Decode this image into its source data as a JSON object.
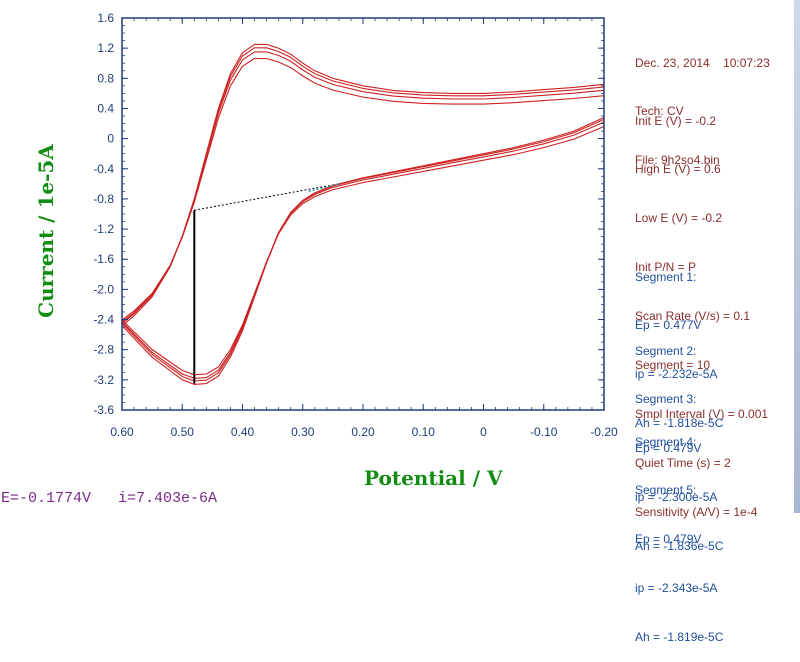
{
  "header": {
    "date": "Dec. 23, 2014",
    "time": "10:07:23",
    "tech": "Tech: CV",
    "file": "File: 9h2so4.bin"
  },
  "params": [
    "Init E (V) = -0.2",
    "High E (V) = 0.6",
    "Low E (V) = -0.2",
    "Init P/N = P",
    "Scan Rate (V/s) = 0.1",
    "Segment = 10",
    "Smpl Interval (V) = 0.001",
    "Quiet Time (s) = 2",
    "Sensitivity (A/V) = 1e-4"
  ],
  "segments": [
    [
      "Segment 1:",
      "Ep = 0.477V",
      "ip = -2.232e-5A",
      "Ah = -1.818e-5C"
    ],
    [
      "Segment 2:",
      "Segment 3:",
      "Ep = 0.479V",
      "ip = -2.300e-5A",
      "Ah = -1.836e-5C"
    ],
    [
      "Segment 4:",
      "Segment 5:",
      "Ep = 0.479V",
      "ip = -2.343e-5A",
      "Ah = -1.819e-5C"
    ]
  ],
  "status": "E=-0.1774V   i=7.403e-6A",
  "colors": {
    "curve": "#cc2222",
    "axis": "#1f3d7a",
    "label": "#138c13",
    "baseline": "#000000",
    "marker": "#1aa0b0"
  },
  "chart_data": {
    "type": "line",
    "xlabel": "Potential / V",
    "ylabel": "Current / 1e-5A",
    "xlim": [
      0.6,
      -0.2
    ],
    "ylim": [
      -3.6,
      1.6
    ],
    "xticks": [
      "0.60",
      "0.50",
      "0.40",
      "0.30",
      "0.20",
      "0.10",
      "0",
      "-0.10",
      "-0.20"
    ],
    "yticks": [
      "1.6",
      "1.2",
      "0.8",
      "0.4",
      "0",
      "-0.4",
      "-0.8",
      "-1.2",
      "-1.6",
      "-2.0",
      "-2.4",
      "-2.8",
      "-3.2",
      "-3.6"
    ],
    "cycles": [
      {
        "scale": 1.0,
        "offset": 0.0
      },
      {
        "scale": 0.98,
        "offset": -0.02
      },
      {
        "scale": 0.96,
        "offset": -0.05
      },
      {
        "scale": 0.93,
        "offset": -0.1
      }
    ],
    "cathodic": {
      "x": [
        0.6,
        0.55,
        0.5,
        0.48,
        0.46,
        0.44,
        0.42,
        0.4,
        0.38,
        0.36,
        0.34,
        0.32,
        0.3,
        0.28,
        0.25,
        0.2,
        0.15,
        0.1,
        0.05,
        0.0,
        -0.05,
        -0.1,
        -0.15,
        -0.2
      ],
      "y": [
        -2.48,
        -2.9,
        -3.2,
        -3.26,
        -3.25,
        -3.15,
        -2.9,
        -2.55,
        -2.1,
        -1.65,
        -1.25,
        -0.98,
        -0.82,
        -0.72,
        -0.62,
        -0.52,
        -0.44,
        -0.36,
        -0.28,
        -0.2,
        -0.12,
        -0.02,
        0.1,
        0.28
      ]
    },
    "anodic": {
      "x": [
        -0.2,
        -0.15,
        -0.1,
        -0.05,
        0.0,
        0.05,
        0.1,
        0.15,
        0.2,
        0.25,
        0.28,
        0.3,
        0.32,
        0.34,
        0.36,
        0.38,
        0.4,
        0.42,
        0.44,
        0.46,
        0.48,
        0.5,
        0.52,
        0.55,
        0.58,
        0.6
      ],
      "y": [
        0.72,
        0.68,
        0.65,
        0.62,
        0.6,
        0.6,
        0.61,
        0.64,
        0.7,
        0.8,
        0.9,
        1.0,
        1.12,
        1.2,
        1.25,
        1.25,
        1.14,
        0.86,
        0.4,
        -0.2,
        -0.8,
        -1.3,
        -1.7,
        -2.1,
        -2.35,
        -2.48
      ]
    },
    "baseline": {
      "x": [
        0.48,
        0.24
      ],
      "y": [
        -0.95,
        -0.6
      ]
    },
    "peak_drop": {
      "x": 0.48,
      "y": [
        -0.95,
        -3.25
      ]
    }
  }
}
